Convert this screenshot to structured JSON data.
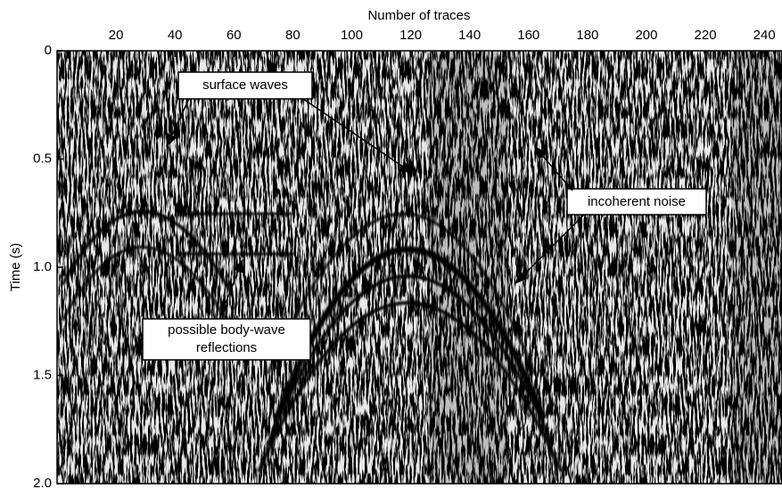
{
  "chart_data": {
    "type": "seismic",
    "title": "Number of traces",
    "ylabel": "Time (s)",
    "xlim": [
      0,
      246
    ],
    "xticks": [
      20,
      40,
      60,
      80,
      100,
      120,
      140,
      160,
      180,
      200,
      220,
      240
    ],
    "ylim": [
      0,
      2.0
    ],
    "yticks": [
      0,
      0.5,
      {
        "value": 1.0,
        "label": "1.0"
      },
      1.5,
      {
        "value": 2.0,
        "label": "2.0"
      }
    ],
    "annotations": [
      {
        "text": [
          "surface waves"
        ]
      },
      {
        "text": [
          "incoherent noise"
        ]
      },
      {
        "text": [
          "possible body-wave",
          "reflections"
        ]
      }
    ]
  }
}
